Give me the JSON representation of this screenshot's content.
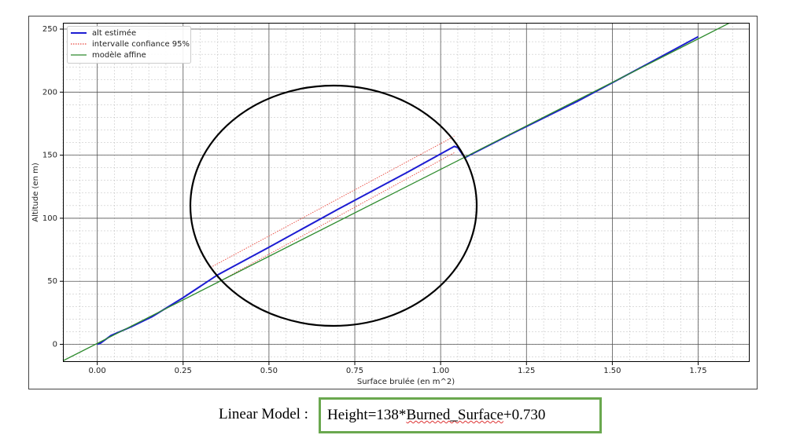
{
  "chart_data": {
    "type": "line",
    "xlabel": "Surface brulée (en m^2)",
    "ylabel": "Altitude (en m)",
    "xlim": [
      -0.1,
      1.9
    ],
    "ylim": [
      -14,
      255
    ],
    "xticks": [
      {
        "value": 0,
        "label": "0.00"
      },
      {
        "value": 0.25,
        "label": "0.25"
      },
      {
        "value": 0.5,
        "label": "0.50"
      },
      {
        "value": 0.75,
        "label": "0.75"
      },
      {
        "value": 1,
        "label": "1.00"
      },
      {
        "value": 1.25,
        "label": "1.25"
      },
      {
        "value": 1.5,
        "label": "1.50"
      },
      {
        "value": 1.75,
        "label": "1.75"
      }
    ],
    "yticks": [
      0,
      50,
      100,
      150,
      200,
      250
    ],
    "grid": true,
    "xminor_step": 0.05,
    "yminor_step": 10,
    "legend": "upper left",
    "series": [
      {
        "name": "alt estimée",
        "color": "#1c1cd2",
        "style": "solid",
        "x": [
          0,
          0.01,
          0.04,
          0.1,
          0.16,
          0.25,
          0.35,
          0.5,
          0.7,
          0.9,
          1.04,
          1.05,
          1.07,
          1.2,
          1.4,
          1.6,
          1.75
        ],
        "values": [
          0,
          1,
          7,
          14,
          22,
          37,
          55,
          77,
          107,
          136,
          157,
          156,
          148,
          166,
          193,
          222,
          244
        ]
      },
      {
        "name": "intervalle confiance 95%",
        "color": "#e8463c",
        "style": "dotted",
        "x": [
          0.33,
          1.04
        ],
        "upper": [
          61,
          165
        ],
        "lower_x": [
          0.35,
          1.04
        ],
        "lower": [
          49,
          152
        ]
      },
      {
        "name": "modèle affine",
        "color": "#2e8b2e",
        "style": "solid",
        "x": [
          -0.1,
          1.85
        ],
        "values": [
          -13.07,
          256.03
        ]
      }
    ]
  },
  "caption": {
    "label": "Linear Model :",
    "formula": [
      "Height=138*",
      "Burned_Surface",
      "+0.730"
    ]
  }
}
